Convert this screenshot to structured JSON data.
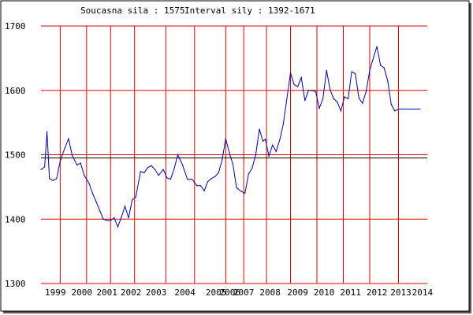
{
  "header": {
    "current_label": "Soucasna sila : 1575",
    "interval_label": "Interval sily : 1392-1671"
  },
  "colors": {
    "grid": "#e00000",
    "reference": "#000000",
    "series": "#0000aa",
    "frame": "#000000",
    "shadow": "#555555"
  },
  "chart_data": {
    "type": "line",
    "title": "",
    "xlabel": "",
    "ylabel": "",
    "ylim": [
      1300,
      1700
    ],
    "xlim": [
      1998.2,
      2014.3
    ],
    "grid": true,
    "y_ticks": [
      1300,
      1400,
      1500,
      1600,
      1700
    ],
    "reference_line": 1495,
    "x_tick_labels": [
      {
        "label": "1999",
        "x": 1998.8
      },
      {
        "label": "2000",
        "x": 1999.9
      },
      {
        "label": "2001",
        "x": 2000.95
      },
      {
        "label": "2002",
        "x": 2001.95
      },
      {
        "label": "2003",
        "x": 2003.0
      },
      {
        "label": "2004",
        "x": 2004.2
      },
      {
        "label": "2005",
        "x": 2005.5
      },
      {
        "label": "2006",
        "x": 2006.08
      },
      {
        "label": "2007",
        "x": 2006.65
      },
      {
        "label": "2008",
        "x": 2007.75
      },
      {
        "label": "2009",
        "x": 2008.9
      },
      {
        "label": "2010",
        "x": 2010.0
      },
      {
        "label": "2011",
        "x": 2011.1
      },
      {
        "label": "2012",
        "x": 2012.2
      },
      {
        "label": "2013",
        "x": 2013.2
      },
      {
        "label": "2014",
        "x": 2014.1
      }
    ],
    "vertical_gridlines": [
      1999.0,
      2000.1,
      2001.1,
      2002.1,
      2003.4,
      2004.6,
      2005.9,
      2006.65,
      2007.6,
      2008.6,
      2009.7,
      2010.8,
      2011.9,
      2013.1
    ],
    "series": [
      {
        "x": [
          1998.2,
          1998.35,
          1998.45,
          1998.55,
          1998.7,
          1998.85,
          1999.0,
          1999.2,
          1999.35,
          1999.5,
          1999.7,
          1999.85,
          2000.0,
          2000.2,
          2000.35,
          2000.5,
          2000.65,
          2000.8,
          2000.95,
          2001.1,
          2001.25,
          2001.4,
          2001.55,
          2001.7,
          2001.85,
          2002.0,
          2002.15,
          2002.35,
          2002.5,
          2002.65,
          2002.8,
          2002.95,
          2003.1,
          2003.3,
          2003.45,
          2003.6,
          2003.75,
          2003.9,
          2004.1,
          2004.3,
          2004.5,
          2004.7,
          2004.85,
          2005.0,
          2005.15,
          2005.3,
          2005.45,
          2005.6,
          2005.75,
          2005.9,
          2006.05,
          2006.2,
          2006.35,
          2006.55,
          2006.7,
          2006.85,
          2007.0,
          2007.15,
          2007.3,
          2007.45,
          2007.55,
          2007.7,
          2007.85,
          2008.0,
          2008.15,
          2008.3,
          2008.45,
          2008.6,
          2008.75,
          2008.9,
          2009.05,
          2009.2,
          2009.35,
          2009.5,
          2009.65,
          2009.8,
          2009.95,
          2010.1,
          2010.25,
          2010.4,
          2010.55,
          2010.7,
          2010.85,
          2011.0,
          2011.15,
          2011.3,
          2011.45,
          2011.6,
          2011.75,
          2011.9,
          2012.05,
          2012.2,
          2012.35,
          2012.5,
          2012.65,
          2012.8,
          2012.95,
          2013.1,
          2013.25,
          2013.4,
          2013.55,
          2013.7,
          2013.85,
          2014.0
        ],
        "values": [
          1477,
          1481,
          1536,
          1463,
          1460,
          1463,
          1490,
          1511,
          1525,
          1499,
          1484,
          1487,
          1468,
          1456,
          1440,
          1427,
          1413,
          1400,
          1398,
          1398,
          1402,
          1388,
          1403,
          1420,
          1402,
          1430,
          1434,
          1474,
          1472,
          1480,
          1483,
          1477,
          1468,
          1477,
          1464,
          1462,
          1478,
          1500,
          1484,
          1462,
          1462,
          1452,
          1452,
          1444,
          1458,
          1463,
          1466,
          1472,
          1492,
          1525,
          1503,
          1485,
          1449,
          1443,
          1440,
          1470,
          1479,
          1500,
          1540,
          1521,
          1524,
          1498,
          1515,
          1505,
          1523,
          1548,
          1588,
          1627,
          1609,
          1606,
          1620,
          1584,
          1600,
          1600,
          1598,
          1572,
          1587,
          1631,
          1601,
          1587,
          1582,
          1568,
          1590,
          1587,
          1629,
          1626,
          1588,
          1580,
          1598,
          1631,
          1650,
          1668,
          1639,
          1635,
          1615,
          1578,
          1568,
          1571,
          1571,
          1571,
          1571,
          1571,
          1571,
          1571
        ]
      }
    ]
  }
}
